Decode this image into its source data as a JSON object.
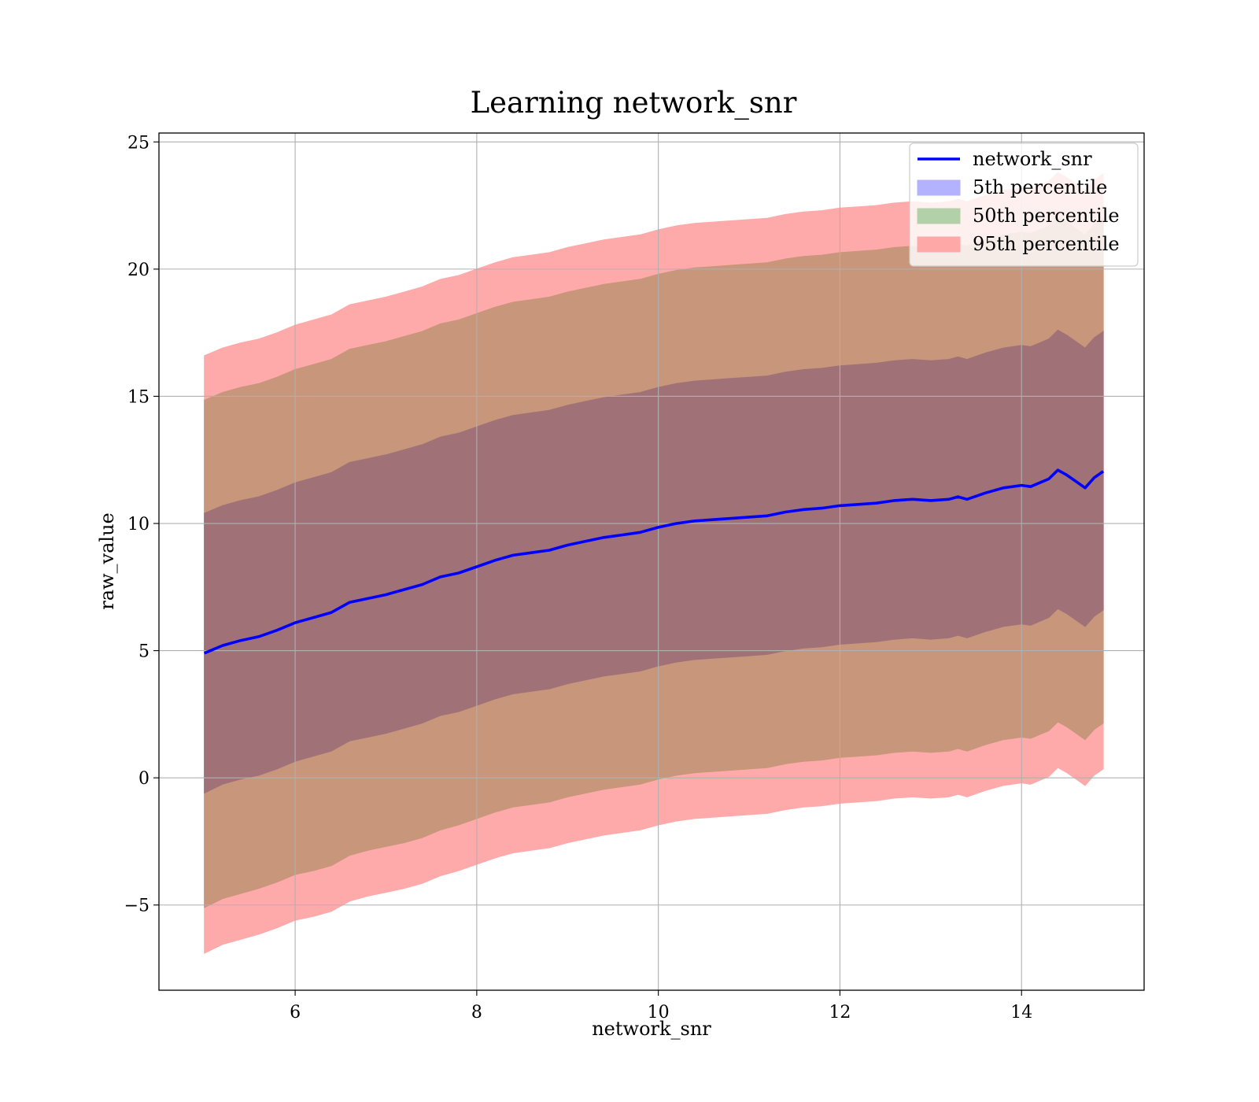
{
  "chart_data": {
    "type": "area",
    "title": "Learning network_snr",
    "xlabel": "network_snr",
    "ylabel": "raw_value",
    "xlim": [
      4.5,
      15.35
    ],
    "ylim": [
      -8.35,
      25.35
    ],
    "xticks": [
      6,
      8,
      10,
      12,
      14
    ],
    "yticks": [
      -5,
      0,
      5,
      10,
      15,
      20,
      25
    ],
    "xtick_labels": [
      "6",
      "8",
      "10",
      "12",
      "14"
    ],
    "ytick_labels": [
      "−5",
      "0",
      "5",
      "10",
      "15",
      "20",
      "25"
    ],
    "grid": true,
    "legend_position": "top-right",
    "x": [
      5.0,
      5.2,
      5.4,
      5.6,
      5.8,
      6.0,
      6.2,
      6.4,
      6.6,
      6.8,
      7.0,
      7.2,
      7.4,
      7.6,
      7.8,
      8.0,
      8.2,
      8.4,
      8.6,
      8.8,
      9.0,
      9.2,
      9.4,
      9.6,
      9.8,
      10.0,
      10.2,
      10.4,
      10.6,
      10.8,
      11.0,
      11.2,
      11.4,
      11.6,
      11.8,
      12.0,
      12.2,
      12.4,
      12.6,
      12.8,
      13.0,
      13.2,
      13.3,
      13.4,
      13.6,
      13.8,
      14.0,
      14.1,
      14.2,
      14.3,
      14.4,
      14.5,
      14.6,
      14.7,
      14.8,
      14.9
    ],
    "series": [
      {
        "name": "network_snr",
        "kind": "line",
        "color": "#0000ff",
        "values": [
          4.9,
          5.2,
          5.4,
          5.55,
          5.8,
          6.1,
          6.3,
          6.5,
          6.9,
          7.05,
          7.2,
          7.4,
          7.6,
          7.9,
          8.05,
          8.3,
          8.55,
          8.75,
          8.85,
          8.95,
          9.15,
          9.3,
          9.45,
          9.55,
          9.65,
          9.85,
          10.0,
          10.1,
          10.15,
          10.2,
          10.25,
          10.3,
          10.45,
          10.55,
          10.6,
          10.7,
          10.75,
          10.8,
          10.9,
          10.95,
          10.9,
          10.95,
          11.05,
          10.95,
          11.2,
          11.4,
          11.5,
          11.45,
          11.6,
          11.75,
          12.1,
          11.9,
          11.65,
          11.4,
          11.8,
          12.05
        ]
      },
      {
        "name": "5th percentile",
        "kind": "band",
        "color": "#ffaaaa",
        "legend_color": "#b2b2ff",
        "low": [
          -6.9,
          -6.55,
          -6.35,
          -6.15,
          -5.9,
          -5.6,
          -5.45,
          -5.25,
          -4.85,
          -4.65,
          -4.5,
          -4.35,
          -4.15,
          -3.85,
          -3.65,
          -3.4,
          -3.15,
          -2.95,
          -2.85,
          -2.75,
          -2.55,
          -2.4,
          -2.25,
          -2.15,
          -2.05,
          -1.85,
          -1.7,
          -1.6,
          -1.55,
          -1.5,
          -1.45,
          -1.4,
          -1.25,
          -1.15,
          -1.1,
          -1.0,
          -0.95,
          -0.9,
          -0.8,
          -0.75,
          -0.8,
          -0.75,
          -0.65,
          -0.75,
          -0.5,
          -0.3,
          -0.2,
          -0.25,
          -0.1,
          0.05,
          0.4,
          0.2,
          -0.05,
          -0.3,
          0.1,
          0.35
        ],
        "high": [
          16.6,
          16.9,
          17.1,
          17.25,
          17.5,
          17.8,
          18.0,
          18.2,
          18.6,
          18.75,
          18.9,
          19.1,
          19.3,
          19.6,
          19.75,
          20.0,
          20.25,
          20.45,
          20.55,
          20.65,
          20.85,
          21.0,
          21.15,
          21.25,
          21.35,
          21.55,
          21.7,
          21.8,
          21.85,
          21.9,
          21.95,
          22.0,
          22.15,
          22.25,
          22.3,
          22.4,
          22.45,
          22.5,
          22.6,
          22.65,
          22.6,
          22.65,
          22.75,
          22.65,
          22.9,
          23.1,
          23.2,
          23.15,
          23.3,
          23.45,
          23.8,
          23.6,
          23.35,
          23.1,
          23.5,
          23.75
        ]
      },
      {
        "name": "50th percentile",
        "kind": "band",
        "color": "#c8967a",
        "legend_color": "#b3d1a8",
        "low": [
          -5.1,
          -4.75,
          -4.55,
          -4.35,
          -4.1,
          -3.8,
          -3.65,
          -3.45,
          -3.05,
          -2.85,
          -2.7,
          -2.55,
          -2.35,
          -2.05,
          -1.85,
          -1.6,
          -1.35,
          -1.15,
          -1.05,
          -0.95,
          -0.75,
          -0.6,
          -0.45,
          -0.35,
          -0.25,
          -0.05,
          0.1,
          0.2,
          0.25,
          0.3,
          0.35,
          0.4,
          0.55,
          0.65,
          0.7,
          0.8,
          0.85,
          0.9,
          1.0,
          1.05,
          1.0,
          1.05,
          1.15,
          1.05,
          1.3,
          1.5,
          1.6,
          1.55,
          1.7,
          1.85,
          2.2,
          2.0,
          1.75,
          1.5,
          1.9,
          2.15
        ],
        "high": [
          14.85,
          15.15,
          15.35,
          15.5,
          15.75,
          16.05,
          16.25,
          16.45,
          16.85,
          17.0,
          17.15,
          17.35,
          17.55,
          17.85,
          18.0,
          18.25,
          18.5,
          18.7,
          18.8,
          18.9,
          19.1,
          19.25,
          19.4,
          19.5,
          19.6,
          19.8,
          19.95,
          20.05,
          20.1,
          20.15,
          20.2,
          20.25,
          20.4,
          20.5,
          20.55,
          20.65,
          20.7,
          20.75,
          20.85,
          20.9,
          20.85,
          20.9,
          21.0,
          20.9,
          21.15,
          21.35,
          21.45,
          21.4,
          21.55,
          21.7,
          22.05,
          21.85,
          21.6,
          21.35,
          21.75,
          22.0
        ]
      },
      {
        "name": "95th percentile",
        "kind": "band",
        "color": "#a07278",
        "legend_color": "#ffa8a8",
        "low": [
          -0.6,
          -0.25,
          -0.05,
          0.1,
          0.35,
          0.65,
          0.85,
          1.05,
          1.45,
          1.6,
          1.75,
          1.95,
          2.15,
          2.45,
          2.6,
          2.85,
          3.1,
          3.3,
          3.4,
          3.5,
          3.7,
          3.85,
          4.0,
          4.1,
          4.2,
          4.4,
          4.55,
          4.65,
          4.7,
          4.75,
          4.8,
          4.85,
          5.0,
          5.1,
          5.15,
          5.25,
          5.3,
          5.35,
          5.45,
          5.5,
          5.45,
          5.5,
          5.6,
          5.5,
          5.75,
          5.95,
          6.05,
          6.0,
          6.15,
          6.3,
          6.65,
          6.45,
          6.2,
          5.95,
          6.35,
          6.6
        ],
        "high": [
          10.4,
          10.7,
          10.9,
          11.05,
          11.3,
          11.6,
          11.8,
          12.0,
          12.4,
          12.55,
          12.7,
          12.9,
          13.1,
          13.4,
          13.55,
          13.8,
          14.05,
          14.25,
          14.35,
          14.45,
          14.65,
          14.8,
          14.95,
          15.05,
          15.15,
          15.35,
          15.5,
          15.6,
          15.65,
          15.7,
          15.75,
          15.8,
          15.95,
          16.05,
          16.1,
          16.2,
          16.25,
          16.3,
          16.4,
          16.45,
          16.4,
          16.45,
          16.55,
          16.45,
          16.7,
          16.9,
          17.0,
          16.95,
          17.1,
          17.25,
          17.6,
          17.4,
          17.15,
          16.9,
          17.3,
          17.55
        ]
      }
    ]
  }
}
